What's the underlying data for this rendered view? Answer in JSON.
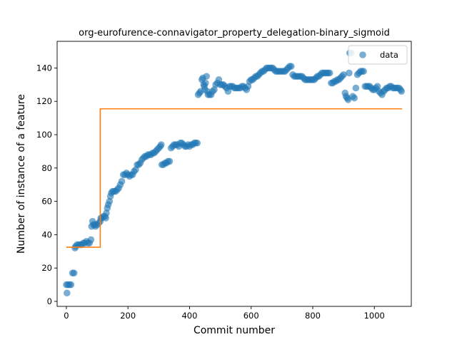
{
  "chart_data": {
    "type": "scatter",
    "title": "org-eurofurence-connavigator_property_delegation-binary_sigmoid",
    "xlabel": "Commit number",
    "ylabel": "Number of instance of a feature",
    "xlim": [
      -30,
      1120
    ],
    "ylim": [
      -3,
      156
    ],
    "xticks": [
      0,
      200,
      400,
      600,
      800,
      1000
    ],
    "yticks": [
      0,
      20,
      40,
      60,
      80,
      100,
      120,
      140
    ],
    "grid": false,
    "legend_position": "top-right",
    "colors": {
      "data": "#1f77b4",
      "fit": "#ff7f0e"
    },
    "series": [
      {
        "name": "data",
        "kind": "scatter",
        "points": [
          [
            0,
            10
          ],
          [
            2,
            5
          ],
          [
            5,
            10
          ],
          [
            10,
            10
          ],
          [
            15,
            10
          ],
          [
            20,
            17
          ],
          [
            25,
            17
          ],
          [
            28,
            32
          ],
          [
            30,
            33
          ],
          [
            35,
            34
          ],
          [
            40,
            34
          ],
          [
            45,
            34
          ],
          [
            50,
            34
          ],
          [
            55,
            35
          ],
          [
            60,
            35
          ],
          [
            65,
            36
          ],
          [
            70,
            35
          ],
          [
            75,
            35
          ],
          [
            80,
            37
          ],
          [
            82,
            45
          ],
          [
            85,
            48
          ],
          [
            88,
            46
          ],
          [
            92,
            46
          ],
          [
            95,
            45
          ],
          [
            100,
            46
          ],
          [
            105,
            47
          ],
          [
            110,
            48
          ],
          [
            112,
            50
          ],
          [
            115,
            50
          ],
          [
            120,
            51
          ],
          [
            125,
            51
          ],
          [
            128,
            50
          ],
          [
            130,
            53
          ],
          [
            133,
            56
          ],
          [
            136,
            58
          ],
          [
            140,
            60
          ],
          [
            143,
            63
          ],
          [
            146,
            65
          ],
          [
            150,
            66
          ],
          [
            155,
            66
          ],
          [
            160,
            66
          ],
          [
            165,
            67
          ],
          [
            170,
            68
          ],
          [
            175,
            70
          ],
          [
            180,
            72
          ],
          [
            185,
            76
          ],
          [
            190,
            76
          ],
          [
            195,
            77
          ],
          [
            200,
            76
          ],
          [
            205,
            75
          ],
          [
            210,
            76
          ],
          [
            215,
            76
          ],
          [
            220,
            78
          ],
          [
            225,
            79
          ],
          [
            230,
            82
          ],
          [
            235,
            82
          ],
          [
            240,
            83
          ],
          [
            245,
            85
          ],
          [
            250,
            86
          ],
          [
            255,
            87
          ],
          [
            260,
            87
          ],
          [
            265,
            88
          ],
          [
            270,
            88
          ],
          [
            275,
            88
          ],
          [
            280,
            89
          ],
          [
            285,
            89
          ],
          [
            290,
            90
          ],
          [
            295,
            91
          ],
          [
            300,
            92
          ],
          [
            305,
            93
          ],
          [
            308,
            94
          ],
          [
            310,
            82
          ],
          [
            315,
            82
          ],
          [
            320,
            83
          ],
          [
            325,
            83
          ],
          [
            330,
            84
          ],
          [
            335,
            84
          ],
          [
            340,
            92
          ],
          [
            345,
            93
          ],
          [
            350,
            94
          ],
          [
            355,
            94
          ],
          [
            360,
            94
          ],
          [
            365,
            93
          ],
          [
            370,
            95
          ],
          [
            375,
            95
          ],
          [
            380,
            94
          ],
          [
            385,
            93
          ],
          [
            390,
            93
          ],
          [
            395,
            94
          ],
          [
            400,
            93
          ],
          [
            405,
            94
          ],
          [
            410,
            94
          ],
          [
            415,
            95
          ],
          [
            420,
            95
          ],
          [
            425,
            95
          ],
          [
            428,
            124
          ],
          [
            432,
            125
          ],
          [
            436,
            126
          ],
          [
            440,
            133
          ],
          [
            443,
            134
          ],
          [
            446,
            130
          ],
          [
            448,
            129
          ],
          [
            450,
            127
          ],
          [
            452,
            131
          ],
          [
            455,
            135
          ],
          [
            458,
            126
          ],
          [
            460,
            124
          ],
          [
            465,
            124
          ],
          [
            470,
            124
          ],
          [
            475,
            126
          ],
          [
            480,
            127
          ],
          [
            485,
            130
          ],
          [
            490,
            131
          ],
          [
            495,
            133
          ],
          [
            500,
            130
          ],
          [
            505,
            130
          ],
          [
            510,
            130
          ],
          [
            515,
            129
          ],
          [
            520,
            128
          ],
          [
            525,
            126
          ],
          [
            530,
            129
          ],
          [
            535,
            129
          ],
          [
            540,
            129
          ],
          [
            545,
            128
          ],
          [
            550,
            128
          ],
          [
            555,
            128
          ],
          [
            560,
            128
          ],
          [
            565,
            128
          ],
          [
            570,
            129
          ],
          [
            575,
            129
          ],
          [
            580,
            128
          ],
          [
            585,
            127
          ],
          [
            590,
            129
          ],
          [
            595,
            132
          ],
          [
            600,
            133
          ],
          [
            605,
            133
          ],
          [
            610,
            134
          ],
          [
            615,
            135
          ],
          [
            620,
            135
          ],
          [
            625,
            136
          ],
          [
            630,
            137
          ],
          [
            635,
            138
          ],
          [
            640,
            138
          ],
          [
            645,
            139
          ],
          [
            650,
            140
          ],
          [
            655,
            140
          ],
          [
            660,
            140
          ],
          [
            665,
            140
          ],
          [
            670,
            140
          ],
          [
            675,
            139
          ],
          [
            680,
            138
          ],
          [
            685,
            138
          ],
          [
            690,
            138
          ],
          [
            695,
            138
          ],
          [
            700,
            138
          ],
          [
            705,
            138
          ],
          [
            710,
            138
          ],
          [
            715,
            139
          ],
          [
            720,
            140
          ],
          [
            725,
            141
          ],
          [
            730,
            141
          ],
          [
            735,
            136
          ],
          [
            740,
            135
          ],
          [
            745,
            135
          ],
          [
            750,
            135
          ],
          [
            755,
            135
          ],
          [
            760,
            135
          ],
          [
            765,
            135
          ],
          [
            770,
            134
          ],
          [
            775,
            133
          ],
          [
            780,
            133
          ],
          [
            785,
            133
          ],
          [
            790,
            133
          ],
          [
            795,
            133
          ],
          [
            800,
            133
          ],
          [
            805,
            133
          ],
          [
            810,
            134
          ],
          [
            815,
            135
          ],
          [
            820,
            135
          ],
          [
            825,
            136
          ],
          [
            830,
            137
          ],
          [
            835,
            137
          ],
          [
            840,
            137
          ],
          [
            845,
            137
          ],
          [
            850,
            137
          ],
          [
            855,
            137
          ],
          [
            860,
            131
          ],
          [
            865,
            131
          ],
          [
            870,
            132
          ],
          [
            875,
            132
          ],
          [
            880,
            133
          ],
          [
            885,
            133
          ],
          [
            890,
            134
          ],
          [
            895,
            135
          ],
          [
            900,
            136
          ],
          [
            905,
            125
          ],
          [
            908,
            123
          ],
          [
            912,
            122
          ],
          [
            915,
            121
          ],
          [
            918,
            137
          ],
          [
            920,
            149
          ],
          [
            925,
            149
          ],
          [
            930,
            123
          ],
          [
            935,
            122
          ],
          [
            940,
            128
          ],
          [
            945,
            136
          ],
          [
            950,
            137
          ],
          [
            955,
            138
          ],
          [
            960,
            138
          ],
          [
            965,
            138
          ],
          [
            970,
            129
          ],
          [
            975,
            129
          ],
          [
            980,
            129
          ],
          [
            985,
            129
          ],
          [
            990,
            128
          ],
          [
            995,
            127
          ],
          [
            1000,
            127
          ],
          [
            1005,
            128
          ],
          [
            1010,
            129
          ],
          [
            1015,
            126
          ],
          [
            1020,
            125
          ],
          [
            1025,
            124
          ],
          [
            1030,
            126
          ],
          [
            1035,
            127
          ],
          [
            1040,
            128
          ],
          [
            1045,
            128
          ],
          [
            1050,
            129
          ],
          [
            1055,
            129
          ],
          [
            1060,
            128
          ],
          [
            1065,
            128
          ],
          [
            1070,
            128
          ],
          [
            1075,
            128
          ],
          [
            1080,
            128
          ],
          [
            1085,
            127
          ],
          [
            1088,
            126
          ]
        ]
      },
      {
        "name": "",
        "kind": "line",
        "points": [
          [
            0,
            32.5
          ],
          [
            110,
            32.5
          ],
          [
            110,
            115.5
          ],
          [
            1090,
            115.5
          ]
        ]
      }
    ]
  }
}
